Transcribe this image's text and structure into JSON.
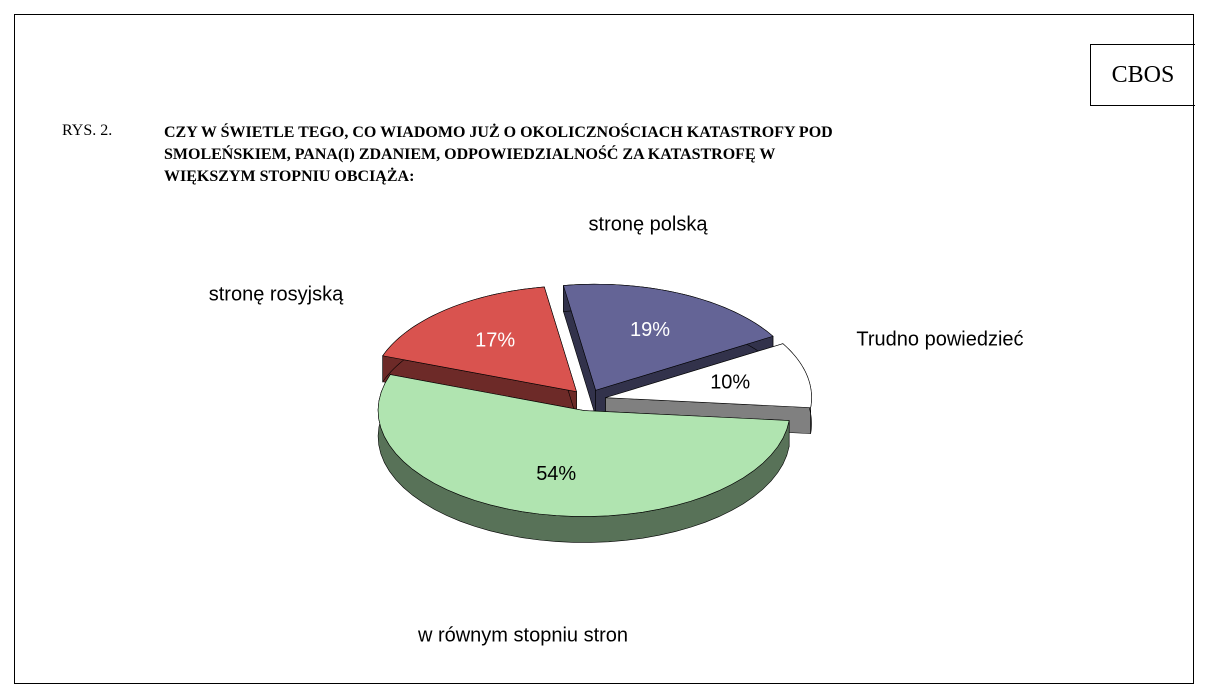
{
  "header": {
    "brand": "CBOS",
    "figure_label": "RYS. 2."
  },
  "chart_data": {
    "type": "pie",
    "title": "CZY W ŚWIETLE TEGO, CO WIADOMO JUŻ O OKOLICZNOŚCIACH KATASTROFY POD SMOLEŃSKIEM, PANA(I) ZDANIEM, ODPOWIEDZIALNOŚĆ ZA KATASTROFĘ W WIĘKSZYM STOPNIU OBCIĄŻA:",
    "categories": [
      "stronę polską",
      "Trudno powiedzieć",
      "w równym stopniu stron",
      "stronę rosyjską"
    ],
    "values": [
      19,
      10,
      54,
      17
    ],
    "value_labels": [
      "19%",
      "10%",
      "54%",
      "17%"
    ],
    "colors": [
      "#646496",
      "#ffffff",
      "#b0e4b0",
      "#d9534f"
    ]
  }
}
